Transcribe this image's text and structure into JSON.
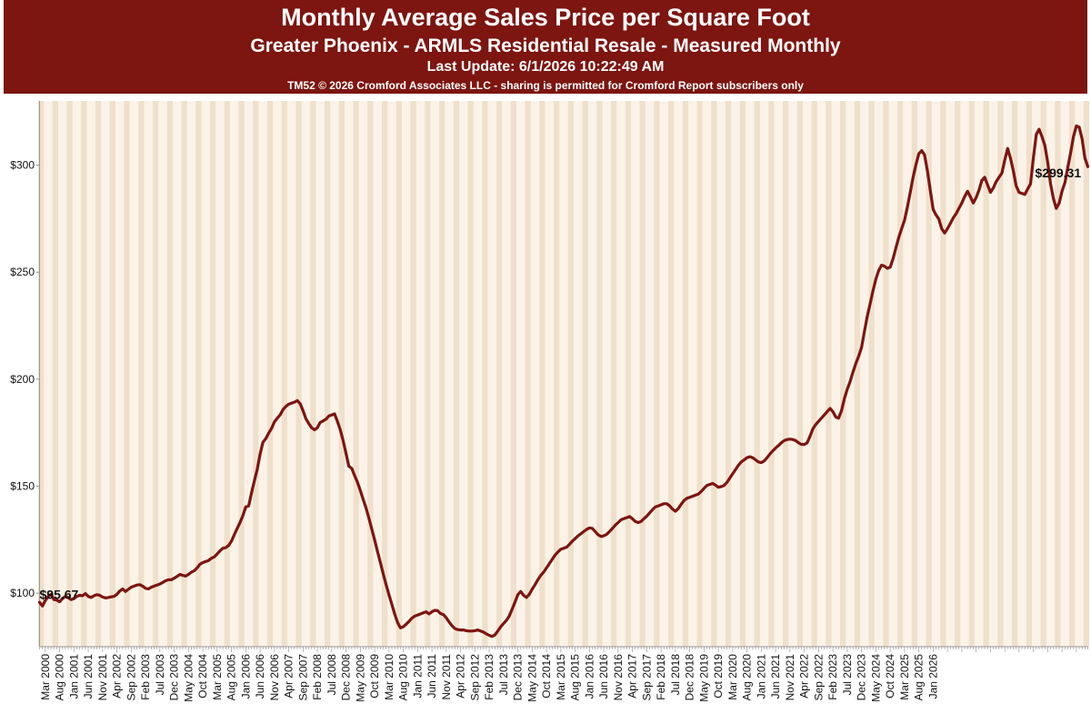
{
  "header": {
    "title": "Monthly Average Sales Price per Square Foot",
    "subtitle": "Greater Phoenix - ARMLS Residential Resale - Measured Monthly",
    "update": "Last Update: 6/1/2026 10:22:49 AM",
    "copyright": "TM52 © 2026 Cromford Associates LLC - sharing is permitted for Cromford Report subscribers only"
  },
  "colors": {
    "header_bg": "#7d1510",
    "line": "#7d1510",
    "band_light": "#fbf3e8",
    "band_dark": "#efe0cc"
  },
  "chart_data": {
    "type": "line",
    "x_start": "Jan 2000",
    "x_end": "Jun 2026",
    "ylim": [
      75,
      330
    ],
    "yticks": [
      100,
      150,
      200,
      250,
      300
    ],
    "ytick_labels": [
      "$100",
      "$150",
      "$200",
      "$250",
      "$300"
    ],
    "xtick_labels": [
      "Mar 2000",
      "Aug 2000",
      "Jan 2001",
      "Jun 2001",
      "Nov 2001",
      "Apr 2002",
      "Sep 2002",
      "Feb 2003",
      "Jul 2003",
      "Dec 2003",
      "May 2004",
      "Oct 2004",
      "Mar 2005",
      "Aug 2005",
      "Jan 2006",
      "Jun 2006",
      "Nov 2006",
      "Apr 2007",
      "Sep 2007",
      "Feb 2008",
      "Jul 2008",
      "Dec 2008",
      "May 2009",
      "Oct 2009",
      "Mar 2010",
      "Aug 2010",
      "Jan 2011",
      "Jun 2011",
      "Nov 2011",
      "Apr 2012",
      "Sep 2012",
      "Feb 2013",
      "Jul 2013",
      "Dec 2013",
      "May 2014",
      "Oct 2014",
      "Mar 2015",
      "Aug 2015",
      "Jan 2016",
      "Jun 2016",
      "Nov 2016",
      "Apr 2017",
      "Sep 2017",
      "Feb 2018",
      "Jul 2018",
      "Dec 2018",
      "May 2019",
      "Oct 2019",
      "Mar 2020",
      "Aug 2020",
      "Jan 2021",
      "Jun 2021",
      "Nov 2021",
      "Apr 2022",
      "Sep 2022",
      "Feb 2023",
      "Jul 2023",
      "Dec 2023",
      "May 2024",
      "Oct 2024",
      "Mar 2025",
      "Aug 2025",
      "Jan 2026"
    ],
    "annotations": [
      {
        "text": "$95.67",
        "at": "first"
      },
      {
        "text": "$299.31",
        "at": "last"
      }
    ],
    "grid": false,
    "series": [
      {
        "values": [
          95.7,
          94.0,
          96.5,
          98.5,
          99.5,
          97.0,
          96.8,
          96.0,
          97.5,
          98.5,
          98.0,
          97.0,
          97.5,
          98.5,
          99.0,
          98.8,
          99.8,
          98.5,
          98.0,
          98.8,
          99.3,
          99.0,
          98.2,
          97.8,
          98.0,
          98.3,
          98.5,
          99.5,
          101.0,
          102.0,
          100.8,
          101.8,
          102.8,
          103.3,
          103.8,
          104.0,
          103.3,
          102.3,
          102.0,
          102.8,
          103.3,
          103.8,
          104.3,
          105.0,
          105.8,
          106.3,
          106.3,
          107.0,
          107.8,
          108.8,
          108.3,
          108.0,
          108.8,
          109.8,
          110.5,
          111.8,
          113.5,
          114.3,
          114.8,
          115.3,
          116.3,
          117.0,
          118.3,
          119.8,
          121.0,
          121.3,
          122.3,
          124.3,
          127.3,
          130.3,
          133.0,
          136.3,
          140.3,
          140.8,
          146.8,
          152.5,
          157.8,
          165.0,
          170.5,
          172.3,
          174.8,
          177.0,
          180.0,
          181.8,
          183.3,
          185.8,
          187.3,
          188.3,
          188.8,
          189.3,
          190.0,
          188.5,
          185.3,
          181.5,
          179.3,
          177.3,
          176.3,
          177.3,
          179.8,
          180.5,
          181.3,
          182.8,
          183.3,
          183.8,
          180.3,
          176.3,
          171.3,
          165.3,
          159.3,
          158.3,
          155.0,
          151.8,
          148.0,
          143.8,
          139.8,
          135.0,
          130.0,
          124.8,
          119.5,
          114.3,
          109.0,
          104.0,
          99.3,
          94.8,
          90.3,
          86.3,
          83.8,
          84.3,
          85.5,
          86.8,
          88.3,
          89.3,
          89.8,
          90.3,
          90.8,
          91.3,
          90.3,
          91.3,
          92.0,
          91.8,
          90.5,
          90.0,
          88.5,
          86.5,
          84.8,
          83.5,
          83.0,
          82.8,
          82.8,
          82.5,
          82.3,
          82.3,
          82.5,
          82.8,
          82.3,
          81.8,
          81.0,
          80.3,
          79.8,
          80.5,
          82.3,
          84.3,
          85.8,
          87.3,
          89.3,
          92.5,
          95.8,
          99.3,
          100.8,
          99.0,
          98.0,
          99.5,
          101.8,
          104.0,
          106.3,
          108.3,
          109.8,
          111.8,
          113.8,
          115.8,
          117.8,
          119.3,
          120.5,
          121.0,
          121.5,
          122.8,
          124.3,
          125.5,
          126.8,
          127.8,
          128.8,
          129.8,
          130.5,
          130.3,
          128.8,
          127.3,
          126.5,
          126.8,
          127.5,
          128.8,
          130.3,
          131.8,
          133.0,
          134.3,
          134.8,
          135.3,
          135.8,
          134.8,
          133.5,
          133.0,
          133.5,
          134.8,
          136.0,
          137.5,
          139.0,
          140.3,
          140.8,
          141.3,
          141.8,
          141.8,
          140.8,
          139.3,
          138.3,
          139.5,
          141.5,
          143.3,
          144.3,
          144.8,
          145.3,
          145.8,
          146.3,
          147.5,
          149.0,
          150.3,
          150.8,
          151.3,
          150.5,
          149.5,
          149.8,
          150.3,
          151.8,
          153.8,
          155.8,
          157.8,
          159.8,
          161.3,
          162.3,
          163.3,
          163.8,
          163.3,
          162.3,
          161.3,
          161.0,
          161.8,
          163.3,
          165.0,
          166.5,
          167.8,
          169.0,
          170.3,
          171.3,
          171.8,
          172.0,
          171.8,
          171.3,
          170.3,
          169.5,
          169.5,
          170.3,
          173.3,
          176.8,
          178.8,
          180.3,
          181.8,
          183.3,
          184.8,
          186.3,
          184.8,
          182.3,
          181.8,
          185.3,
          190.8,
          195.3,
          198.8,
          203.3,
          207.3,
          210.8,
          214.8,
          222.3,
          229.3,
          235.3,
          241.3,
          246.8,
          250.8,
          253.3,
          252.8,
          251.8,
          252.3,
          256.3,
          261.3,
          266.3,
          270.3,
          274.3,
          280.3,
          287.3,
          294.3,
          300.3,
          305.3,
          306.8,
          304.8,
          297.3,
          288.3,
          279.3,
          276.8,
          274.8,
          270.3,
          268.3,
          270.3,
          272.8,
          275.3,
          277.3,
          279.8,
          282.3,
          285.3,
          287.8,
          285.3,
          282.3,
          284.8,
          288.3,
          292.8,
          294.3,
          290.8,
          287.3,
          289.3,
          292.3,
          294.3,
          296.3,
          302.3,
          307.8,
          303.3,
          297.3,
          290.3,
          287.3,
          286.8,
          286.3,
          288.8,
          291.3,
          303.3,
          314.3,
          316.8,
          313.3,
          309.3,
          301.3,
          291.3,
          284.3,
          279.8,
          282.3,
          287.8,
          291.8,
          298.8,
          305.8,
          313.3,
          318.3,
          317.8,
          312.3,
          303.3,
          299.3
        ]
      }
    ]
  }
}
